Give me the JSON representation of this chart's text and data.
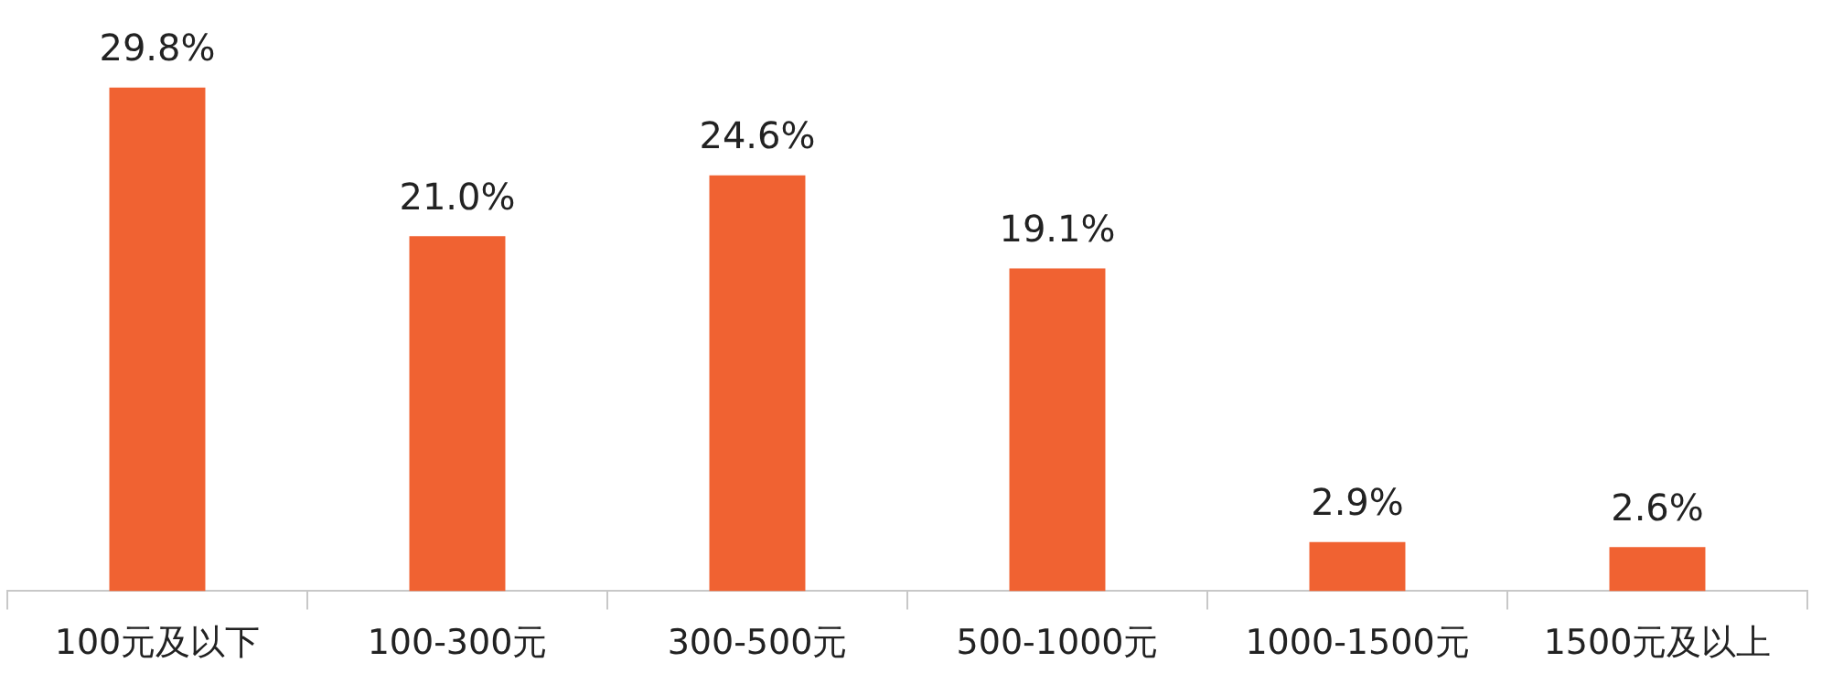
{
  "chart_data": {
    "type": "bar",
    "categories": [
      "100元及以下",
      "100-300元",
      "300-500元",
      "500-1000元",
      "1000-1500元",
      "1500元及以上"
    ],
    "values": [
      29.8,
      21.0,
      24.6,
      19.1,
      2.9,
      2.6
    ],
    "value_labels": [
      "29.8%",
      "21.0%",
      "24.6%",
      "19.1%",
      "2.9%",
      "2.6%"
    ],
    "color": "#f06232",
    "legend": false,
    "grid": false
  }
}
